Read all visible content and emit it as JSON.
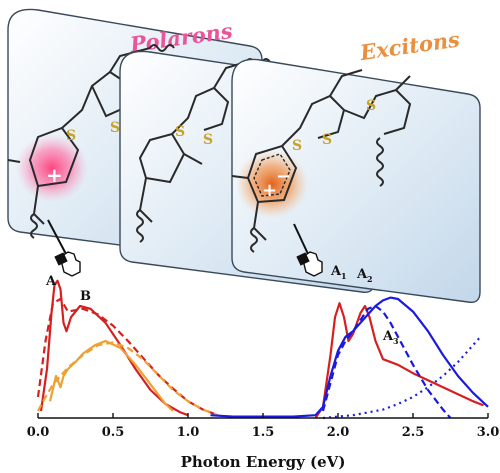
{
  "labels": {
    "polarons": "Polarons",
    "excitons": "Excitons",
    "sulfur": "S",
    "plus": "+",
    "minus": "−",
    "peak_a": "A",
    "peak_b": "B",
    "peak_a1_main": "A",
    "peak_a1_sub": "1",
    "peak_a2_main": "A",
    "peak_a2_sub": "2",
    "peak_a3_main": "A",
    "peak_a3_sub": "3"
  },
  "colors": {
    "polaron_label": "#e8559a",
    "exciton_label": "#e98f3f",
    "sulfur": "#c9a227",
    "red_trace": "#d62020",
    "orange_trace": "#f0a030",
    "blue_trace": "#1a1ae0",
    "panel_fill": "#dbe8f3"
  },
  "icons": [
    "hand-pointer-icon",
    "hand-pointer-icon"
  ],
  "chart_data": {
    "type": "line",
    "xlabel": "Photon Energy (eV)",
    "ylabel": "",
    "xlim": [
      0.0,
      3.0
    ],
    "xticks": [
      "0.0",
      "0.5",
      "1.0",
      "1.5",
      "2.0",
      "2.5",
      "3.0"
    ],
    "grid": false,
    "series": [
      {
        "color": "#d62020",
        "style": "solid",
        "x": [
          0.02,
          0.06,
          0.09,
          0.11,
          0.13,
          0.15,
          0.17,
          0.19,
          0.22,
          0.28,
          0.35,
          0.45,
          0.55,
          0.65,
          0.75,
          0.85,
          0.95,
          1.0
        ],
        "y": [
          0.05,
          0.35,
          0.75,
          0.95,
          0.98,
          0.92,
          0.68,
          0.62,
          0.72,
          0.8,
          0.78,
          0.68,
          0.52,
          0.35,
          0.2,
          0.1,
          0.04,
          0.02
        ]
      },
      {
        "color": "#d62020",
        "style": "dashed",
        "x": [
          0.0,
          0.05,
          0.1,
          0.15,
          0.2,
          0.3,
          0.4,
          0.5,
          0.6,
          0.7,
          0.8,
          0.9,
          1.0,
          1.1,
          1.2
        ],
        "y": [
          0.15,
          0.55,
          0.82,
          0.85,
          0.76,
          0.78,
          0.74,
          0.66,
          0.55,
          0.43,
          0.31,
          0.21,
          0.12,
          0.06,
          0.02
        ]
      },
      {
        "color": "#f0a030",
        "style": "solid",
        "x": [
          0.08,
          0.12,
          0.15,
          0.17,
          0.2,
          0.25,
          0.3,
          0.38,
          0.45,
          0.55,
          0.65,
          0.75,
          0.85,
          0.9
        ],
        "y": [
          0.12,
          0.3,
          0.22,
          0.3,
          0.35,
          0.4,
          0.46,
          0.52,
          0.55,
          0.5,
          0.38,
          0.24,
          0.1,
          0.05
        ]
      },
      {
        "color": "#f0a030",
        "style": "dashed",
        "x": [
          0.0,
          0.05,
          0.1,
          0.15,
          0.2,
          0.3,
          0.4,
          0.5,
          0.6,
          0.7,
          0.8,
          0.9,
          1.0,
          1.1,
          1.2
        ],
        "y": [
          0.05,
          0.15,
          0.24,
          0.3,
          0.36,
          0.45,
          0.52,
          0.54,
          0.5,
          0.42,
          0.31,
          0.2,
          0.12,
          0.06,
          0.02
        ]
      },
      {
        "color": "#d62020",
        "style": "solid",
        "x": [
          1.85,
          1.9,
          1.95,
          1.98,
          2.01,
          2.04,
          2.07,
          2.1,
          2.15,
          2.18,
          2.21,
          2.25,
          2.3,
          2.4,
          2.5,
          2.6,
          2.7,
          2.8,
          2.9,
          2.97
        ],
        "y": [
          0.0,
          0.08,
          0.45,
          0.72,
          0.82,
          0.72,
          0.55,
          0.6,
          0.75,
          0.8,
          0.72,
          0.55,
          0.42,
          0.38,
          0.32,
          0.27,
          0.22,
          0.17,
          0.12,
          0.09
        ]
      },
      {
        "color": "#1a1ae0",
        "style": "solid",
        "x": [
          1.15,
          1.3,
          1.5,
          1.7,
          1.85,
          1.9,
          1.95,
          2.0,
          2.05,
          2.1,
          2.15,
          2.2,
          2.25,
          2.3,
          2.35,
          2.4,
          2.5,
          2.6,
          2.7,
          2.8,
          2.9,
          3.0
        ],
        "y": [
          0.02,
          0.01,
          0.01,
          0.01,
          0.02,
          0.08,
          0.3,
          0.48,
          0.58,
          0.62,
          0.68,
          0.74,
          0.8,
          0.84,
          0.86,
          0.85,
          0.76,
          0.62,
          0.45,
          0.3,
          0.18,
          0.08
        ]
      },
      {
        "color": "#1a1ae0",
        "style": "dashed",
        "x": [
          1.9,
          1.95,
          2.0,
          2.05,
          2.1,
          2.15,
          2.2,
          2.25,
          2.3,
          2.35,
          2.4,
          2.5,
          2.6,
          2.7,
          2.75
        ],
        "y": [
          0.05,
          0.25,
          0.45,
          0.55,
          0.62,
          0.7,
          0.78,
          0.8,
          0.76,
          0.68,
          0.58,
          0.38,
          0.2,
          0.06,
          0.0
        ]
      },
      {
        "color": "#1a1ae0",
        "style": "dotted",
        "x": [
          1.9,
          2.0,
          2.1,
          2.2,
          2.3,
          2.4,
          2.5,
          2.6,
          2.7,
          2.8,
          2.9,
          2.95
        ],
        "y": [
          0.0,
          0.01,
          0.02,
          0.04,
          0.06,
          0.1,
          0.15,
          0.22,
          0.3,
          0.4,
          0.52,
          0.58
        ]
      }
    ]
  }
}
